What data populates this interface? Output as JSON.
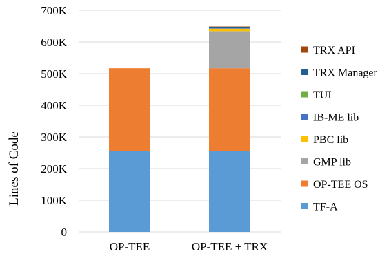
{
  "chart_data": {
    "type": "bar",
    "stacked": true,
    "categories": [
      "OP-TEE",
      "OP-TEE + TRX"
    ],
    "series": [
      {
        "name": "TF-A",
        "color": "#5b9bd5",
        "values": [
          255000,
          255000
        ]
      },
      {
        "name": "OP-TEE OS",
        "color": "#ed7d31",
        "values": [
          262000,
          262000
        ]
      },
      {
        "name": "GMP lib",
        "color": "#a5a5a5",
        "values": [
          0,
          117000
        ]
      },
      {
        "name": "PBC lib",
        "color": "#ffc000",
        "values": [
          0,
          8000
        ]
      },
      {
        "name": "IB-ME lib",
        "color": "#4472c4",
        "values": [
          0,
          2000
        ]
      },
      {
        "name": "TUI",
        "color": "#70ad47",
        "values": [
          0,
          1000
        ]
      },
      {
        "name": "TRX Manager",
        "color": "#255e91",
        "values": [
          0,
          3000
        ]
      },
      {
        "name": "TRX API",
        "color": "#9e480e",
        "values": [
          0,
          1000
        ]
      }
    ],
    "ylabel": "Lines of Code",
    "xlabel": "",
    "ylim": [
      0,
      700000
    ],
    "yticks": [
      0,
      100000,
      200000,
      300000,
      400000,
      500000,
      600000,
      700000
    ],
    "ytick_labels": [
      "0",
      "100K",
      "200K",
      "300K",
      "400K",
      "500K",
      "600K",
      "700K"
    ],
    "grid": true,
    "legend": {
      "placement": "right",
      "order": [
        "TRX API",
        "TRX Manager",
        "TUI",
        "IB-ME lib",
        "PBC lib",
        "GMP lib",
        "OP-TEE OS",
        "TF-A"
      ]
    }
  }
}
